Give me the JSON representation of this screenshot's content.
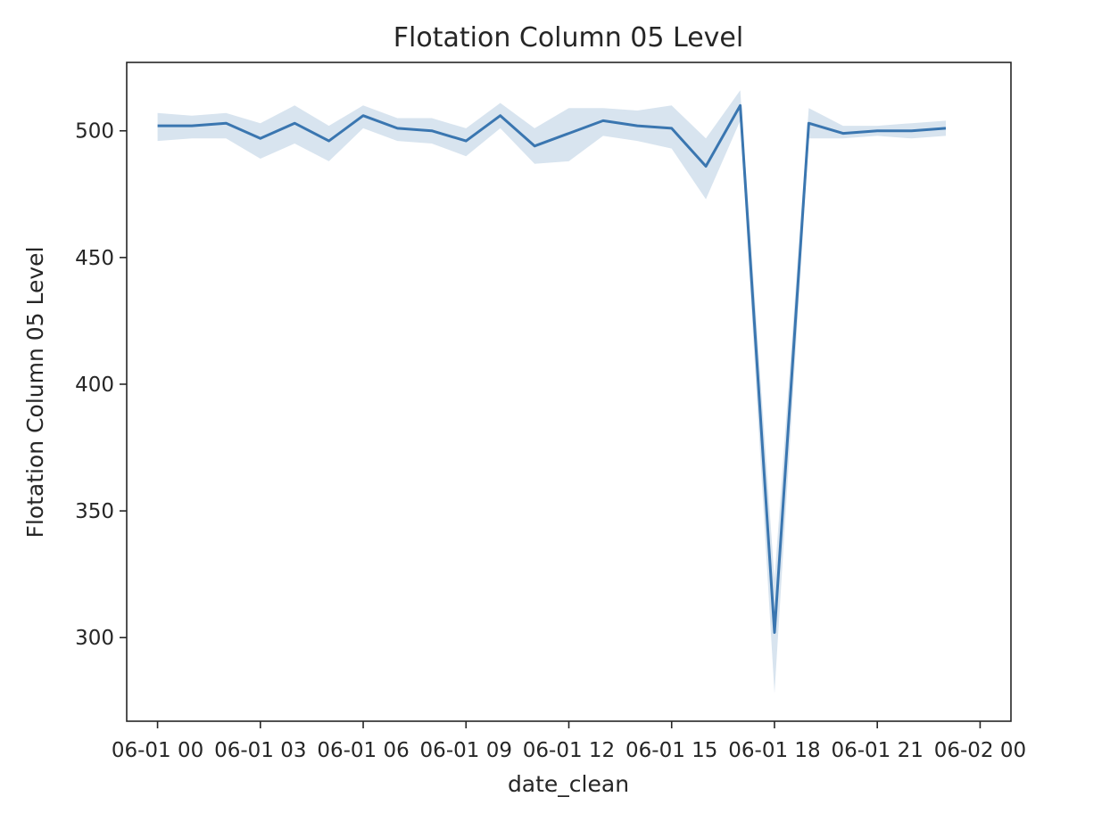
{
  "chart_data": {
    "type": "line",
    "title": "Flotation Column 05 Level",
    "xlabel": "date_clean",
    "ylabel": "Flotation Column 05 Level",
    "xlim": [
      "2017-06-01 -00:54",
      "2017-06-02 00:54"
    ],
    "ylim": [
      267,
      527
    ],
    "x_ticks": [
      {
        "value": "2017-06-01 00:00",
        "label": "06-01 00"
      },
      {
        "value": "2017-06-01 03:00",
        "label": "06-01 03"
      },
      {
        "value": "2017-06-01 06:00",
        "label": "06-01 06"
      },
      {
        "value": "2017-06-01 09:00",
        "label": "06-01 09"
      },
      {
        "value": "2017-06-01 12:00",
        "label": "06-01 12"
      },
      {
        "value": "2017-06-01 15:00",
        "label": "06-01 15"
      },
      {
        "value": "2017-06-01 18:00",
        "label": "06-01 18"
      },
      {
        "value": "2017-06-01 21:00",
        "label": "06-01 21"
      },
      {
        "value": "2017-06-02 00:00",
        "label": "06-02 00"
      }
    ],
    "y_ticks": [
      300,
      350,
      400,
      450,
      500
    ],
    "grid": false,
    "series": [
      {
        "color": "#3a76b0",
        "band_color": "#3a76b0",
        "points": [
          {
            "x": "2017-06-01 00:00",
            "y": 502,
            "lo": 496,
            "hi": 507
          },
          {
            "x": "2017-06-01 01:00",
            "y": 502,
            "lo": 497,
            "hi": 506
          },
          {
            "x": "2017-06-01 02:00",
            "y": 503,
            "lo": 497,
            "hi": 507
          },
          {
            "x": "2017-06-01 03:00",
            "y": 497,
            "lo": 489,
            "hi": 503
          },
          {
            "x": "2017-06-01 04:00",
            "y": 503,
            "lo": 495,
            "hi": 510
          },
          {
            "x": "2017-06-01 05:00",
            "y": 496,
            "lo": 488,
            "hi": 502
          },
          {
            "x": "2017-06-01 06:00",
            "y": 506,
            "lo": 501,
            "hi": 510
          },
          {
            "x": "2017-06-01 07:00",
            "y": 501,
            "lo": 496,
            "hi": 505
          },
          {
            "x": "2017-06-01 08:00",
            "y": 500,
            "lo": 495,
            "hi": 505
          },
          {
            "x": "2017-06-01 09:00",
            "y": 496,
            "lo": 490,
            "hi": 501
          },
          {
            "x": "2017-06-01 10:00",
            "y": 506,
            "lo": 501,
            "hi": 511
          },
          {
            "x": "2017-06-01 11:00",
            "y": 494,
            "lo": 487,
            "hi": 501
          },
          {
            "x": "2017-06-01 12:00",
            "y": 499,
            "lo": 488,
            "hi": 509
          },
          {
            "x": "2017-06-01 13:00",
            "y": 504,
            "lo": 498,
            "hi": 509
          },
          {
            "x": "2017-06-01 14:00",
            "y": 502,
            "lo": 496,
            "hi": 508
          },
          {
            "x": "2017-06-01 15:00",
            "y": 501,
            "lo": 493,
            "hi": 510
          },
          {
            "x": "2017-06-01 16:00",
            "y": 486,
            "lo": 473,
            "hi": 497
          },
          {
            "x": "2017-06-01 17:00",
            "y": 510,
            "lo": 504,
            "hi": 516
          },
          {
            "x": "2017-06-01 18:00",
            "y": 302,
            "lo": 278,
            "hi": 323
          },
          {
            "x": "2017-06-01 19:00",
            "y": 503,
            "lo": 497,
            "hi": 509
          },
          {
            "x": "2017-06-01 20:00",
            "y": 499,
            "lo": 497,
            "hi": 502
          },
          {
            "x": "2017-06-01 21:00",
            "y": 500,
            "lo": 498,
            "hi": 502
          },
          {
            "x": "2017-06-01 22:00",
            "y": 500,
            "lo": 497,
            "hi": 503
          },
          {
            "x": "2017-06-01 23:00",
            "y": 501,
            "lo": 498,
            "hi": 504
          }
        ]
      }
    ]
  }
}
